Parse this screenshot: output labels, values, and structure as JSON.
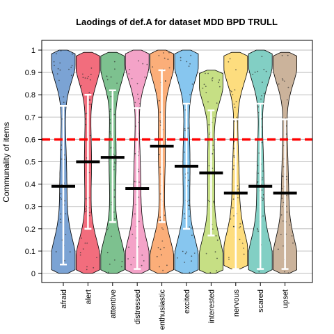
{
  "chart_data": {
    "type": "violin",
    "title": "Laodings of def.A for dataset MDD BPD TRULL",
    "xlabel": "",
    "ylabel": "Communality of items",
    "ylim": [
      0,
      1
    ],
    "yticks": [
      "0",
      "0.1",
      "0.2",
      "0.3",
      "0.4",
      "0.5",
      "0.6",
      "0.7",
      "0.8",
      "0.9",
      "1"
    ],
    "grid": true,
    "reference_line": {
      "value": 0.6,
      "color": "#ff0000",
      "style": "dashed"
    },
    "categories": [
      "afraid",
      "alert",
      "attentive",
      "distressed",
      "enthusiastic",
      "excited",
      "interested",
      "nervous",
      "scared",
      "upset"
    ],
    "colors": [
      "#7ba3d4",
      "#f26d7d",
      "#7dc18f",
      "#f4a3c8",
      "#fbae79",
      "#87c6ef",
      "#c6df84",
      "#fddd7e",
      "#82cfc4",
      "#cbb39b"
    ],
    "series": [
      {
        "category": "afraid",
        "mean": 0.39,
        "lower": 0.04,
        "upper": 0.75,
        "min": 0.0,
        "max": 1.0
      },
      {
        "category": "alert",
        "mean": 0.5,
        "lower": 0.2,
        "upper": 0.8,
        "min": 0.0,
        "max": 0.99
      },
      {
        "category": "attentive",
        "mean": 0.52,
        "lower": 0.23,
        "upper": 0.82,
        "min": 0.0,
        "max": 0.99
      },
      {
        "category": "distressed",
        "mean": 0.38,
        "lower": 0.02,
        "upper": 0.74,
        "min": 0.0,
        "max": 1.0
      },
      {
        "category": "enthusiastic",
        "mean": 0.57,
        "lower": 0.23,
        "upper": 0.91,
        "min": 0.0,
        "max": 1.0
      },
      {
        "category": "excited",
        "mean": 0.48,
        "lower": 0.2,
        "upper": 0.76,
        "min": 0.0,
        "max": 1.0
      },
      {
        "category": "interested",
        "mean": 0.45,
        "lower": 0.17,
        "upper": 0.73,
        "min": 0.0,
        "max": 0.91
      },
      {
        "category": "nervous",
        "mean": 0.36,
        "lower": 0.02,
        "upper": 0.69,
        "min": 0.02,
        "max": 0.99
      },
      {
        "category": "scared",
        "mean": 0.39,
        "lower": 0.02,
        "upper": 0.76,
        "min": 0.0,
        "max": 1.0
      },
      {
        "category": "upset",
        "mean": 0.36,
        "lower": 0.02,
        "upper": 0.69,
        "min": 0.0,
        "max": 0.99
      }
    ]
  }
}
